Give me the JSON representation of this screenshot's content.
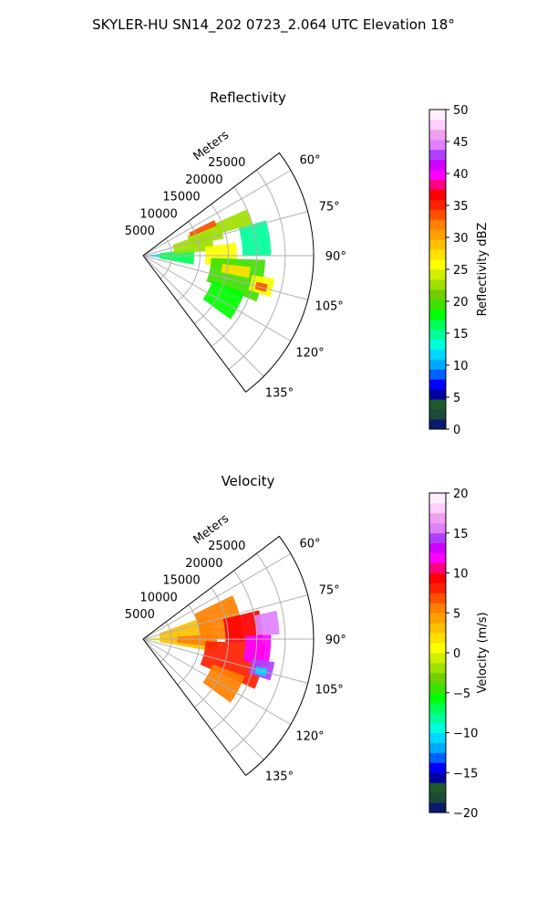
{
  "figure": {
    "title": "SKYLER-HU  SN14_202  0723_2.064 UTC Elevation 18°"
  },
  "chart_data": [
    {
      "type": "heatmap",
      "subtype": "polar-sector-radar",
      "title": "Reflectivity",
      "radial_axis_label": "Meters",
      "radial_ticks": [
        5000,
        10000,
        15000,
        20000,
        25000
      ],
      "radial_tick_labels": [
        "5000",
        "10000",
        "15000",
        "20000",
        "25000"
      ],
      "radial_range": [
        0,
        30000
      ],
      "angle_ticks": [
        60,
        75,
        90,
        105,
        120,
        135
      ],
      "angle_tick_labels": [
        "60°",
        "75°",
        "90°",
        "105°",
        "120°",
        "135°"
      ],
      "angle_range": [
        53,
        143
      ],
      "grid": true,
      "colorbar": {
        "label": "Reflectivity dBZ",
        "range": [
          0,
          50
        ],
        "ticks": [
          0,
          5,
          10,
          15,
          20,
          25,
          30,
          35,
          40,
          45,
          50
        ],
        "tick_labels": [
          "0",
          "5",
          "10",
          "15",
          "20",
          "25",
          "30",
          "35",
          "40",
          "45",
          "50"
        ],
        "colors": [
          "#0a1a6e",
          "#1a4a3a",
          "#1e5a2a",
          "#0000a0",
          "#0000ff",
          "#0060ff",
          "#00aaff",
          "#00d8ff",
          "#00ffdd",
          "#00ff9a",
          "#00ff55",
          "#00ff00",
          "#40e000",
          "#70d000",
          "#a0e000",
          "#d0f000",
          "#ffff00",
          "#ffe000",
          "#ffc000",
          "#ffa000",
          "#ff8000",
          "#ff5000",
          "#ff2000",
          "#ff0000",
          "#ff0080",
          "#ff00ff",
          "#d000ff",
          "#b040ff",
          "#e080ff",
          "#f0a0f0",
          "#ffd0ff",
          "#fff0ff"
        ]
      },
      "echo_regions": [
        {
          "range": [
            1200,
            3200
          ],
          "az": [
            84,
            96
          ],
          "value": 12
        },
        {
          "range": [
            3000,
            9000
          ],
          "az": [
            82,
            100
          ],
          "value": 17
        },
        {
          "range": [
            5500,
            12500
          ],
          "az": [
            70,
            86
          ],
          "value": 22
        },
        {
          "range": [
            8500,
            14500
          ],
          "az": [
            66,
            78
          ],
          "value": 23
        },
        {
          "range": [
            9000,
            14000
          ],
          "az": [
            63.5,
            68
          ],
          "value": 34
        },
        {
          "range": [
            11000,
            16500
          ],
          "az": [
            82,
            98
          ],
          "value": 26
        },
        {
          "range": [
            12000,
            21500
          ],
          "az": [
            92,
            112
          ],
          "value": 19
        },
        {
          "range": [
            14000,
            20000
          ],
          "az": [
            66,
            74
          ],
          "value": 22
        },
        {
          "range": [
            14000,
            19000
          ],
          "az": [
            96,
            102
          ],
          "value": 27
        },
        {
          "range": [
            13000,
            19000
          ],
          "az": [
            110,
            126
          ],
          "value": 18
        },
        {
          "range": [
            17500,
            22500
          ],
          "az": [
            74,
            90
          ],
          "value": 15
        },
        {
          "range": [
            19500,
            23500
          ],
          "az": [
            100,
            108
          ],
          "value": 26
        },
        {
          "range": [
            20500,
            22500
          ],
          "az": [
            103,
            106.5
          ],
          "value": 34
        }
      ]
    },
    {
      "type": "heatmap",
      "subtype": "polar-sector-radar",
      "title": "Velocity",
      "radial_axis_label": "Meters",
      "radial_ticks": [
        5000,
        10000,
        15000,
        20000,
        25000
      ],
      "radial_tick_labels": [
        "5000",
        "10000",
        "15000",
        "20000",
        "25000"
      ],
      "radial_range": [
        0,
        30000
      ],
      "angle_ticks": [
        60,
        75,
        90,
        105,
        120,
        135
      ],
      "angle_tick_labels": [
        "60°",
        "75°",
        "90°",
        "105°",
        "120°",
        "135°"
      ],
      "angle_range": [
        53,
        143
      ],
      "grid": true,
      "colorbar": {
        "label": "Velocity (m/s)",
        "range": [
          -20,
          20
        ],
        "ticks": [
          -20,
          -15,
          -10,
          -5,
          0,
          5,
          10,
          15,
          20
        ],
        "tick_labels": [
          "−20",
          "−15",
          "−10",
          "−5",
          "0",
          "5",
          "10",
          "15",
          "20"
        ],
        "colors": [
          "#0a1a6e",
          "#1a4a3a",
          "#1e5a2a",
          "#0000a0",
          "#0000ff",
          "#0060ff",
          "#00aaff",
          "#00d8ff",
          "#00ffdd",
          "#00ff9a",
          "#00ff55",
          "#00ff00",
          "#40e000",
          "#70d000",
          "#a0e000",
          "#d0f000",
          "#ffff00",
          "#ffe000",
          "#ffc000",
          "#ffa000",
          "#ff8000",
          "#ff5000",
          "#ff2000",
          "#ff0000",
          "#ff0080",
          "#ff00ff",
          "#d000ff",
          "#b040ff",
          "#e080ff",
          "#f0a0f0",
          "#ffd0ff",
          "#fff0ff"
        ]
      },
      "echo_regions": [
        {
          "range": [
            1200,
            3500
          ],
          "az": [
            84,
            96
          ],
          "value": 1
        },
        {
          "range": [
            3000,
            12000
          ],
          "az": [
            70,
            100
          ],
          "value": 3
        },
        {
          "range": [
            6000,
            13000
          ],
          "az": [
            86,
            96
          ],
          "value": 5
        },
        {
          "range": [
            10000,
            17500
          ],
          "az": [
            64,
            90
          ],
          "value": 6
        },
        {
          "range": [
            11000,
            21500
          ],
          "az": [
            92,
            114
          ],
          "value": 8
        },
        {
          "range": [
            13000,
            19000
          ],
          "az": [
            110,
            126
          ],
          "value": 6
        },
        {
          "range": [
            14500,
            21000
          ],
          "az": [
            76,
            92
          ],
          "value": 9
        },
        {
          "range": [
            18000,
            22500
          ],
          "az": [
            88,
            102
          ],
          "value": 12
        },
        {
          "range": [
            20000,
            24000
          ],
          "az": [
            78,
            88
          ],
          "value": 15
        },
        {
          "range": [
            19500,
            23500
          ],
          "az": [
            100,
            108
          ],
          "value": 14
        },
        {
          "range": [
            20500,
            22500
          ],
          "az": [
            103.5,
            107
          ],
          "value": -11
        }
      ]
    }
  ]
}
